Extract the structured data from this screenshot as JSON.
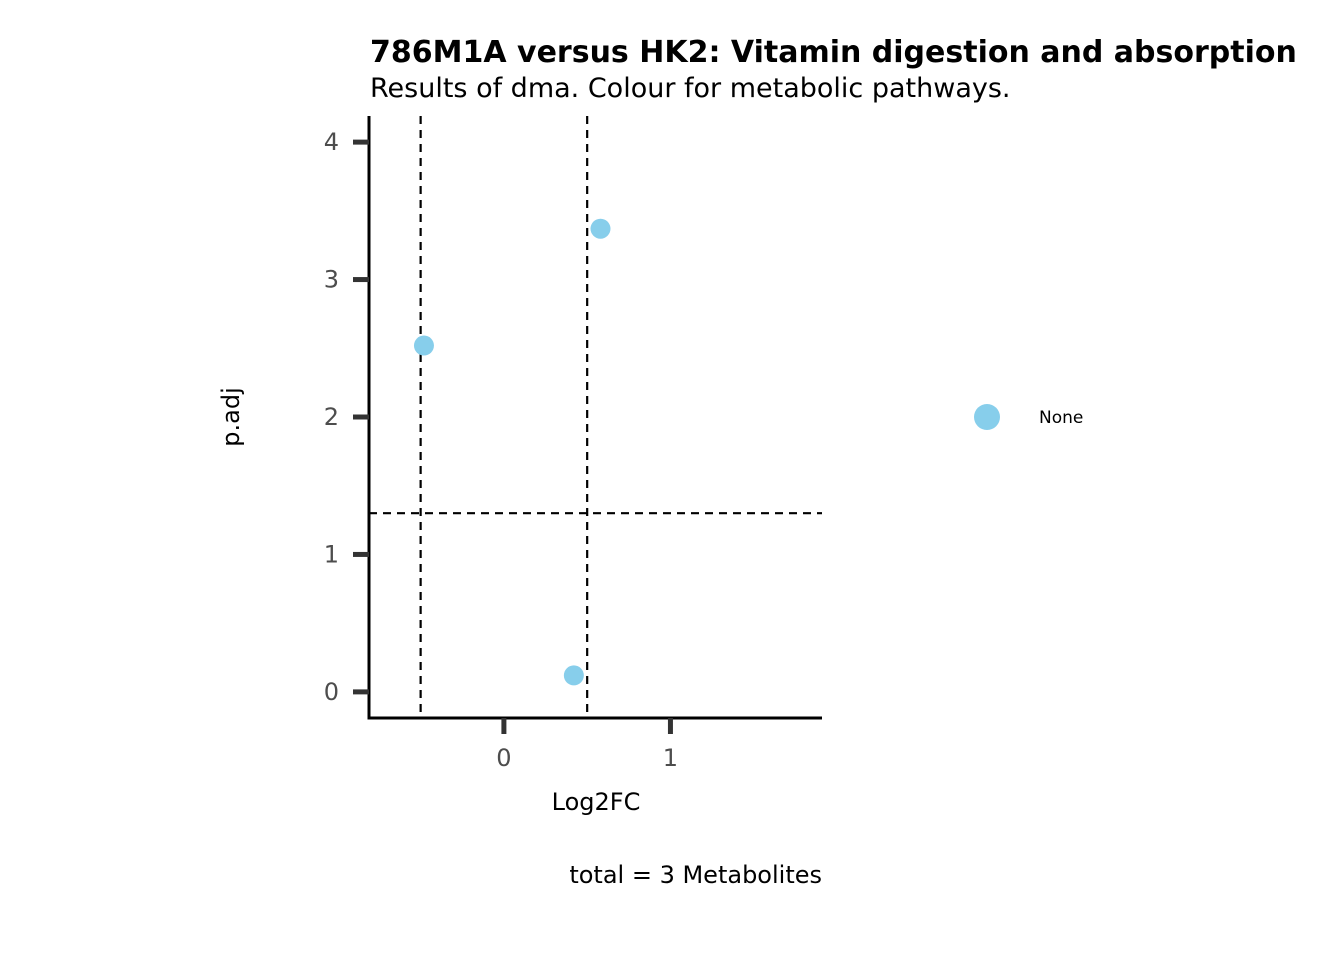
{
  "chart_data": {
    "type": "scatter",
    "title": "786M1A versus HK2: Vitamin digestion and absorption",
    "subtitle": "Results of dma. Colour for metabolic pathways.",
    "xlabel": "Log2FC",
    "ylabel": "p.adj",
    "caption": "total = 3 Metabolites",
    "xlim": [
      -0.81,
      1.91
    ],
    "ylim": [
      -0.19,
      4.19
    ],
    "x_ticks": [
      0,
      1
    ],
    "y_ticks": [
      0,
      1,
      2,
      3,
      4
    ],
    "x_tick_labels": [
      "0",
      "1"
    ],
    "y_tick_labels": [
      "0",
      "1",
      "2",
      "3",
      "4"
    ],
    "vlines": [
      -0.5,
      0.5
    ],
    "hline": 1.3,
    "grid": false,
    "legend_position": "right",
    "series": [
      {
        "name": "None",
        "color": "#87CEEB",
        "points": [
          {
            "x": 0.58,
            "y": 3.37
          },
          {
            "x": -0.48,
            "y": 2.52
          },
          {
            "x": 0.42,
            "y": 0.12
          }
        ]
      }
    ]
  }
}
